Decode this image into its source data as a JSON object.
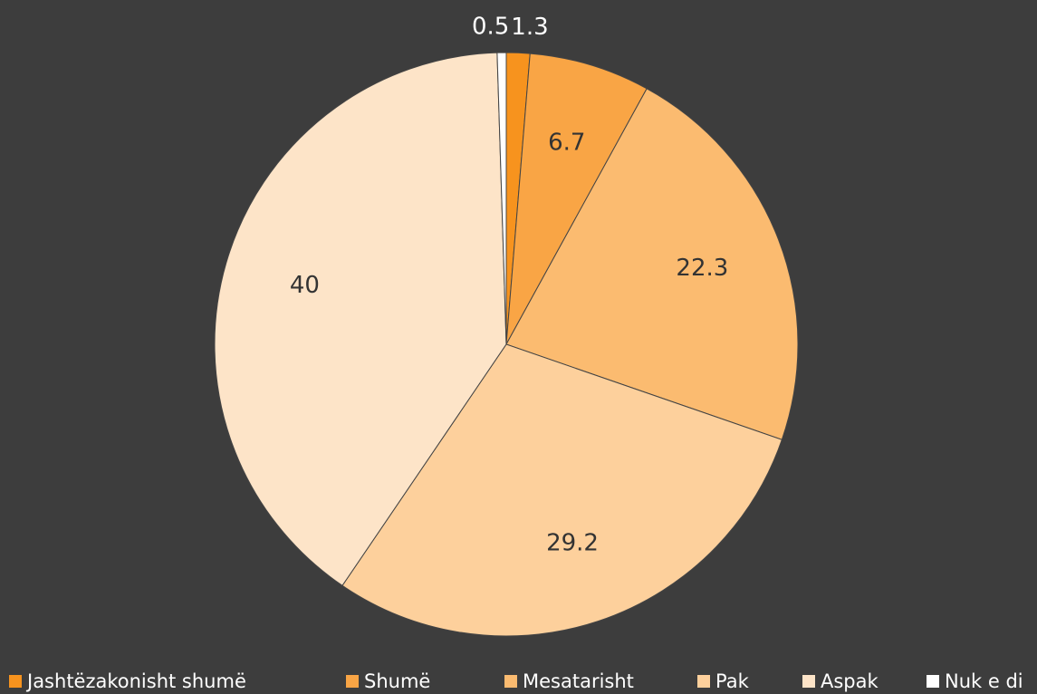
{
  "chart_data": {
    "type": "pie",
    "categories": [
      "Jashtëzakonisht shumë",
      "Shumë",
      "Mesatarisht",
      "Pak",
      "Aspak",
      "Nuk e di"
    ],
    "values": [
      1.3,
      6.7,
      22.3,
      29.2,
      40,
      0.5
    ],
    "colors": [
      "#f7931e",
      "#f9a545",
      "#fbbb70",
      "#fdd09c",
      "#fde4c8",
      "#ffffff"
    ],
    "legend": "bottom"
  }
}
